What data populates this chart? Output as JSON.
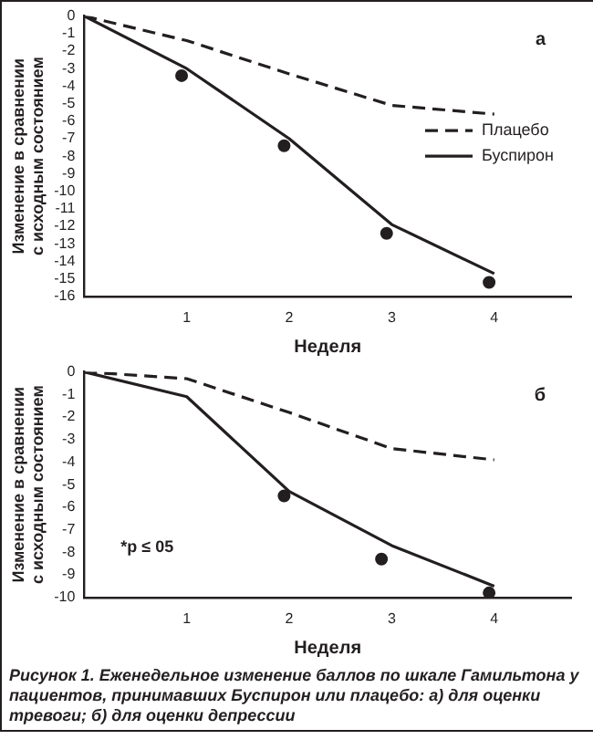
{
  "chart_data": [
    {
      "type": "line",
      "title": "а",
      "xlabel": "Неделя",
      "ylabel": "Изменение в сравнении\nс исходным состоянием",
      "xlim": [
        0,
        4.75
      ],
      "xticks": [
        1,
        2,
        3,
        4
      ],
      "ylim": [
        -16,
        0
      ],
      "yticks": [
        0,
        -1,
        -2,
        -3,
        -4,
        -5,
        -6,
        -7,
        -8,
        -9,
        -10,
        -11,
        -12,
        -13,
        -14,
        -15,
        -16
      ],
      "grid": false,
      "legend": "right",
      "series": [
        {
          "name": "Плацебо",
          "color": "#231f20",
          "x": [
            0,
            1,
            2,
            3,
            4
          ],
          "values": [
            0,
            -1.4,
            -3.3,
            -5.1,
            -5.6
          ],
          "line_style": "dashed",
          "marker": "none"
        },
        {
          "name": "Буспирон",
          "color": "#231f20",
          "x": [
            0,
            1,
            2,
            3,
            4
          ],
          "values": [
            0,
            -3.0,
            -7.0,
            -11.9,
            -14.7
          ],
          "line_style": "solid",
          "marker": "none"
        },
        {
          "type": "scatter",
          "color": "#231f20",
          "x": [
            0.95,
            1.95,
            2.95,
            3.95
          ],
          "values": [
            -3.4,
            -7.4,
            -12.4,
            -15.2
          ],
          "marker": "circle"
        }
      ]
    },
    {
      "type": "line",
      "title": "б",
      "xlabel": "Неделя",
      "ylabel": "Изменение в сравнении\nс исходным состоянием",
      "xlim": [
        0,
        4.75
      ],
      "xticks": [
        1,
        2,
        3,
        4
      ],
      "ylim": [
        -10,
        0
      ],
      "yticks": [
        0,
        -1,
        -2,
        -3,
        -4,
        -5,
        -6,
        -7,
        -8,
        -9,
        -10
      ],
      "grid": false,
      "annotations": [
        "*p ≤ 05",
        "Рисунок 1. Еженедельное изменение баллов по шкале Гамильтона у пациентов, принимавших Буспирон или плацебо: а) для оценки тревоги; б) для оценки депрессии"
      ],
      "series": [
        {
          "color": "#231f20",
          "x": [
            0,
            1,
            2,
            3,
            4
          ],
          "values": [
            0,
            -0.3,
            -1.8,
            -3.4,
            -3.9
          ],
          "line_style": "dashed",
          "marker": "none"
        },
        {
          "color": "#231f20",
          "x": [
            0,
            1,
            2,
            3,
            4
          ],
          "values": [
            0,
            -1.1,
            -5.3,
            -7.7,
            -9.5
          ],
          "line_style": "solid",
          "marker": "none"
        },
        {
          "type": "scatter",
          "color": "#231f20",
          "x": [
            1.95,
            2.9,
            3.95
          ],
          "values": [
            -5.5,
            -8.3,
            -9.8
          ],
          "marker": "circle"
        }
      ]
    }
  ]
}
